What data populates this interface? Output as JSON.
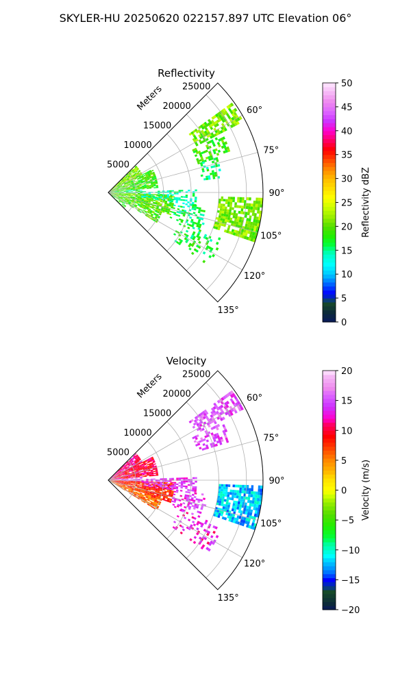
{
  "figure": {
    "suptitle": "SKYLER-HU  20250620  022157.897 UTC Elevation 06°"
  },
  "chart_data": [
    {
      "type": "heatmap",
      "subtype": "polar-sector-ppi",
      "title": "Reflectivity",
      "range_label": "Meters",
      "range_ticks": [
        "5000",
        "10000",
        "15000",
        "20000",
        "25000"
      ],
      "range_values": [
        5000,
        10000,
        15000,
        20000,
        25000
      ],
      "range_max": 28000,
      "azimuth_ticks": [
        "60°",
        "75°",
        "90°",
        "105°",
        "120°",
        "135°"
      ],
      "azimuth_values": [
        60,
        75,
        90,
        105,
        120,
        135
      ],
      "azimuth_range": [
        45,
        135
      ],
      "grid": true,
      "colorbar": {
        "label": "Reflectivity dBZ",
        "min": 0,
        "max": 50,
        "ticks": [
          "0",
          "5",
          "10",
          "15",
          "20",
          "25",
          "30",
          "35",
          "40",
          "45",
          "50"
        ],
        "tick_values": [
          0,
          5,
          10,
          15,
          20,
          25,
          30,
          35,
          40,
          45,
          50
        ],
        "colormap": [
          [
            0,
            "#0a1a5c"
          ],
          [
            2,
            "#0c2a3a"
          ],
          [
            4,
            "#174a2a"
          ],
          [
            5,
            "#0033aa"
          ],
          [
            6,
            "#0000ff"
          ],
          [
            8,
            "#0066ff"
          ],
          [
            9,
            "#0099ff"
          ],
          [
            10,
            "#00c8ff"
          ],
          [
            12,
            "#00ffff"
          ],
          [
            14,
            "#00ffcc"
          ],
          [
            15,
            "#00ff99"
          ],
          [
            16,
            "#00ff40"
          ],
          [
            18,
            "#22ee00"
          ],
          [
            20,
            "#55dd00"
          ],
          [
            22,
            "#99ee00"
          ],
          [
            24,
            "#ccff00"
          ],
          [
            26,
            "#ffff00"
          ],
          [
            28,
            "#ffdd00"
          ],
          [
            30,
            "#ffbb00"
          ],
          [
            32,
            "#ff8800"
          ],
          [
            34,
            "#ff4400"
          ],
          [
            36,
            "#ff0000"
          ],
          [
            38,
            "#ff0066"
          ],
          [
            40,
            "#ff00cc"
          ],
          [
            42,
            "#cc33ff"
          ],
          [
            44,
            "#dd66ff"
          ],
          [
            46,
            "#ee88ee"
          ],
          [
            48,
            "#f5b8f5"
          ],
          [
            50,
            "#ffe8ff"
          ]
        ]
      },
      "echo_regions": [
        {
          "az": [
            46,
            62
          ],
          "r": [
            0,
            7000
          ],
          "value": 21,
          "density": 0.85
        },
        {
          "az": [
            62,
            84
          ],
          "r": [
            0,
            9000
          ],
          "value": 19,
          "density": 0.8
        },
        {
          "az": [
            84,
            92
          ],
          "r": [
            0,
            6000
          ],
          "value": 16,
          "density": 0.6
        },
        {
          "az": [
            92,
            110
          ],
          "r": [
            0,
            12000
          ],
          "value": 20,
          "density": 0.8
        },
        {
          "az": [
            110,
            122
          ],
          "r": [
            0,
            10000
          ],
          "value": 19,
          "density": 0.75
        },
        {
          "az": [
            122,
            134
          ],
          "r": [
            0,
            4000
          ],
          "value": 18,
          "density": 0.6
        },
        {
          "az": [
            88,
            98
          ],
          "r": [
            6000,
            16000
          ],
          "value": 14,
          "density": 0.5
        },
        {
          "az": [
            54,
            62
          ],
          "r": [
            18000,
            27500
          ],
          "value": 21,
          "density": 0.65
        },
        {
          "az": [
            63,
            72
          ],
          "r": [
            17000,
            23000
          ],
          "value": 19,
          "density": 0.5
        },
        {
          "az": [
            72,
            82
          ],
          "r": [
            17000,
            21000
          ],
          "value": 16,
          "density": 0.3
        },
        {
          "az": [
            92,
            108
          ],
          "r": [
            20000,
            27800
          ],
          "value": 21,
          "density": 0.8
        },
        {
          "az": [
            98,
            112
          ],
          "r": [
            12000,
            18000
          ],
          "value": 16,
          "density": 0.35
        },
        {
          "az": [
            112,
            126
          ],
          "r": [
            14000,
            22000
          ],
          "value": 17,
          "density": 0.25
        }
      ]
    },
    {
      "type": "heatmap",
      "subtype": "polar-sector-ppi",
      "title": "Velocity",
      "range_label": "Meters",
      "range_ticks": [
        "5000",
        "10000",
        "15000",
        "20000",
        "25000"
      ],
      "range_values": [
        5000,
        10000,
        15000,
        20000,
        25000
      ],
      "range_max": 28000,
      "azimuth_ticks": [
        "60°",
        "75°",
        "90°",
        "105°",
        "120°",
        "135°"
      ],
      "azimuth_values": [
        60,
        75,
        90,
        105,
        120,
        135
      ],
      "azimuth_range": [
        45,
        135
      ],
      "grid": true,
      "colorbar": {
        "label": "Velocity (m/s)",
        "min": -20,
        "max": 20,
        "ticks": [
          "−20",
          "−15",
          "−10",
          "−5",
          "0",
          "5",
          "10",
          "15",
          "20"
        ],
        "tick_values": [
          -20,
          -15,
          -10,
          -5,
          0,
          5,
          10,
          15,
          20
        ],
        "colormap": [
          [
            -20,
            "#0a1a5c"
          ],
          [
            -19,
            "#0c2a3a"
          ],
          [
            -17,
            "#174a2a"
          ],
          [
            -16,
            "#0033aa"
          ],
          [
            -15,
            "#0000ff"
          ],
          [
            -14,
            "#0066ff"
          ],
          [
            -13,
            "#0099ff"
          ],
          [
            -12,
            "#00c8ff"
          ],
          [
            -11,
            "#00ffff"
          ],
          [
            -10,
            "#00ffcc"
          ],
          [
            -9,
            "#00ff99"
          ],
          [
            -8,
            "#00ff40"
          ],
          [
            -6,
            "#22ee00"
          ],
          [
            -4,
            "#55dd00"
          ],
          [
            -2,
            "#99ee00"
          ],
          [
            -1,
            "#ccff00"
          ],
          [
            0,
            "#ffff00"
          ],
          [
            2,
            "#ffdd00"
          ],
          [
            3,
            "#ffbb00"
          ],
          [
            5,
            "#ff8800"
          ],
          [
            7,
            "#ff4400"
          ],
          [
            9,
            "#ff0000"
          ],
          [
            11,
            "#ff0066"
          ],
          [
            12,
            "#ff00cc"
          ],
          [
            14,
            "#cc33ff"
          ],
          [
            16,
            "#dd66ff"
          ],
          [
            17,
            "#ee88ee"
          ],
          [
            19,
            "#f5b8f5"
          ],
          [
            20,
            "#ffe8ff"
          ]
        ]
      },
      "echo_regions": [
        {
          "az": [
            46,
            62
          ],
          "r": [
            0,
            7000
          ],
          "value": 11,
          "density": 0.9
        },
        {
          "az": [
            62,
            84
          ],
          "r": [
            0,
            9000
          ],
          "value": 10,
          "density": 0.85
        },
        {
          "az": [
            84,
            92
          ],
          "r": [
            0,
            6000
          ],
          "value": 15,
          "density": 0.75
        },
        {
          "az": [
            92,
            110
          ],
          "r": [
            0,
            12000
          ],
          "value": 8,
          "density": 0.85
        },
        {
          "az": [
            110,
            122
          ],
          "r": [
            0,
            10000
          ],
          "value": 6,
          "density": 0.8
        },
        {
          "az": [
            88,
            98
          ],
          "r": [
            6000,
            16000
          ],
          "value": 14,
          "density": 0.55
        },
        {
          "az": [
            54,
            62
          ],
          "r": [
            18000,
            27500
          ],
          "value": 15,
          "density": 0.65
        },
        {
          "az": [
            63,
            72
          ],
          "r": [
            17000,
            23000
          ],
          "value": 15,
          "density": 0.5
        },
        {
          "az": [
            92,
            108
          ],
          "r": [
            20000,
            27800
          ],
          "value": -12,
          "density": 0.8
        },
        {
          "az": [
            98,
            112
          ],
          "r": [
            12000,
            18000
          ],
          "value": 14,
          "density": 0.35
        },
        {
          "az": [
            112,
            126
          ],
          "r": [
            14000,
            22000
          ],
          "value": 13,
          "density": 0.25
        }
      ]
    }
  ]
}
